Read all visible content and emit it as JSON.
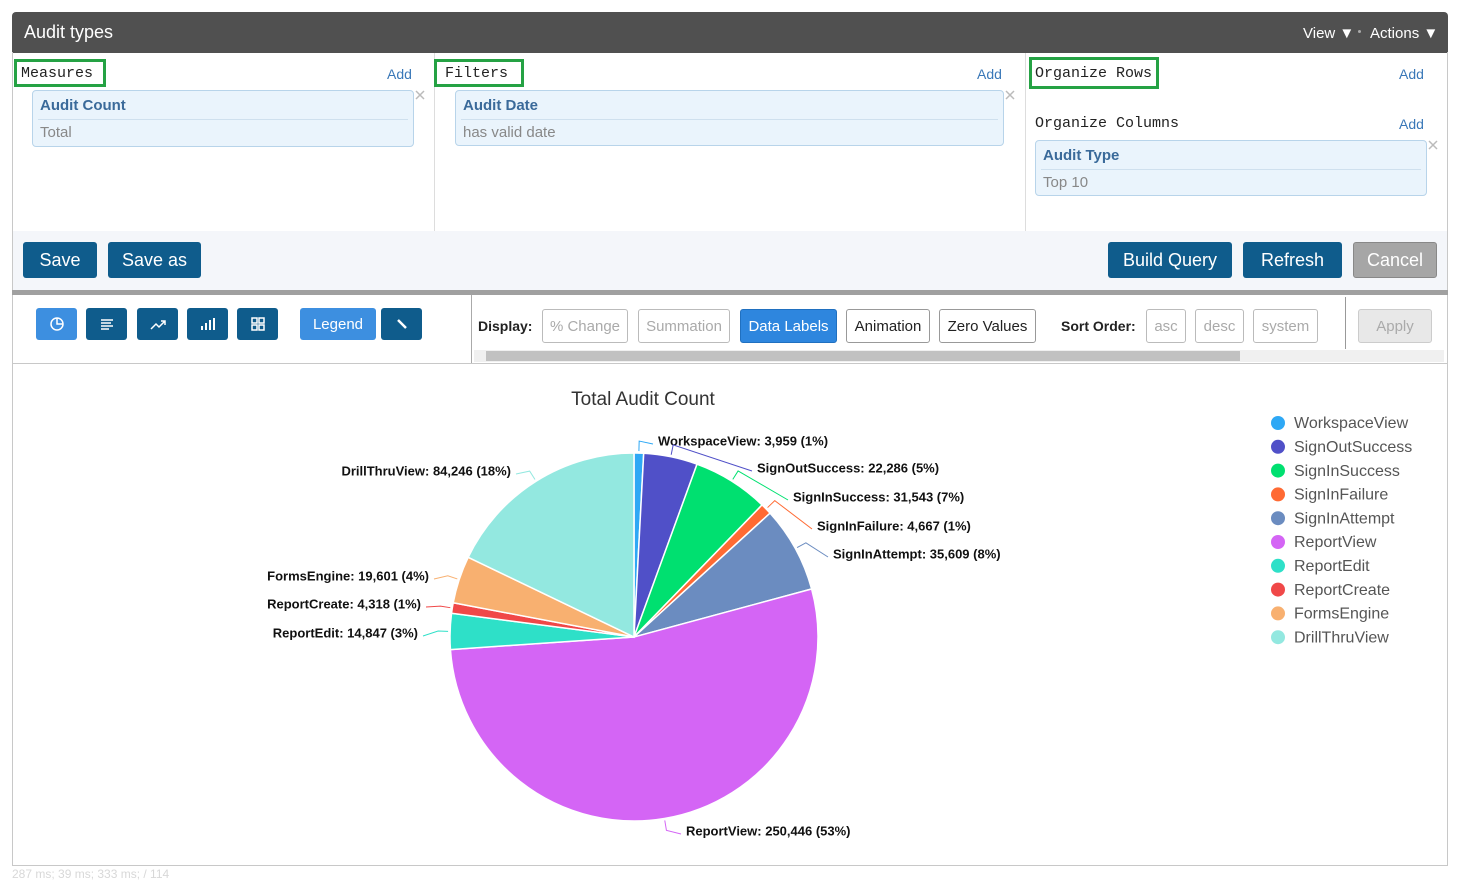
{
  "header": {
    "title": "Audit types",
    "menus": [
      "View ▼",
      "Actions ▼"
    ]
  },
  "measures": {
    "heading": "Measures",
    "add": "Add",
    "card": {
      "title": "Audit Count",
      "detail": "Total"
    }
  },
  "filters": {
    "heading": "Filters",
    "add": "Add",
    "card": {
      "title": "Audit Date",
      "detail": "has valid date"
    }
  },
  "organize_rows": {
    "heading": "Organize Rows",
    "add": "Add"
  },
  "organize_columns": {
    "heading": "Organize Columns",
    "add": "Add",
    "card": {
      "title": "Audit Type",
      "detail": "Top 10"
    }
  },
  "buttons": {
    "save": "Save",
    "save_as": "Save as",
    "build_query": "Build Query",
    "refresh": "Refresh",
    "cancel": "Cancel"
  },
  "toolbar": {
    "legend": "Legend",
    "display_label": "Display:",
    "display_options": [
      {
        "label": "% Change",
        "enabled": false,
        "active": false
      },
      {
        "label": "Summation",
        "enabled": false,
        "active": false
      },
      {
        "label": "Data Labels",
        "enabled": true,
        "active": true
      },
      {
        "label": "Animation",
        "enabled": true,
        "active": false
      },
      {
        "label": "Zero Values",
        "enabled": true,
        "active": false
      }
    ],
    "sort_label": "Sort Order:",
    "sort_options": [
      {
        "label": "asc",
        "enabled": false
      },
      {
        "label": "desc",
        "enabled": false
      },
      {
        "label": "system",
        "enabled": false
      }
    ],
    "apply": "Apply"
  },
  "chart_data": {
    "type": "pie",
    "title": "Total Audit Count",
    "categories": [
      "WorkspaceView",
      "SignOutSuccess",
      "SignInSuccess",
      "SignInFailure",
      "SignInAttempt",
      "ReportView",
      "ReportEdit",
      "ReportCreate",
      "FormsEngine",
      "DrillThruView"
    ],
    "values": [
      3959,
      22286,
      31543,
      4667,
      35609,
      250446,
      14847,
      4318,
      19601,
      84246
    ],
    "value_labels": [
      "WorkspaceView: 3,959 (1%)",
      "SignOutSuccess: 22,286 (5%)",
      "SignInSuccess: 31,543 (7%)",
      "SignInFailure: 4,667 (1%)",
      "SignInAttempt: 35,609 (8%)",
      "ReportView: 250,446 (53%)",
      "ReportEdit: 14,847 (3%)",
      "ReportCreate: 4,318 (1%)",
      "FormsEngine: 19,601 (4%)",
      "DrillThruView: 84,246 (18%)"
    ],
    "colors": [
      "#2ea8f5",
      "#5050c8",
      "#00e070",
      "#ff6a33",
      "#6b8cc0",
      "#d465f5",
      "#2ee0c8",
      "#f04848",
      "#f8b070",
      "#93e8e0"
    ],
    "legend": true,
    "legend_position": "right"
  },
  "footer": "287 ms; 39 ms; 333 ms; / 114"
}
